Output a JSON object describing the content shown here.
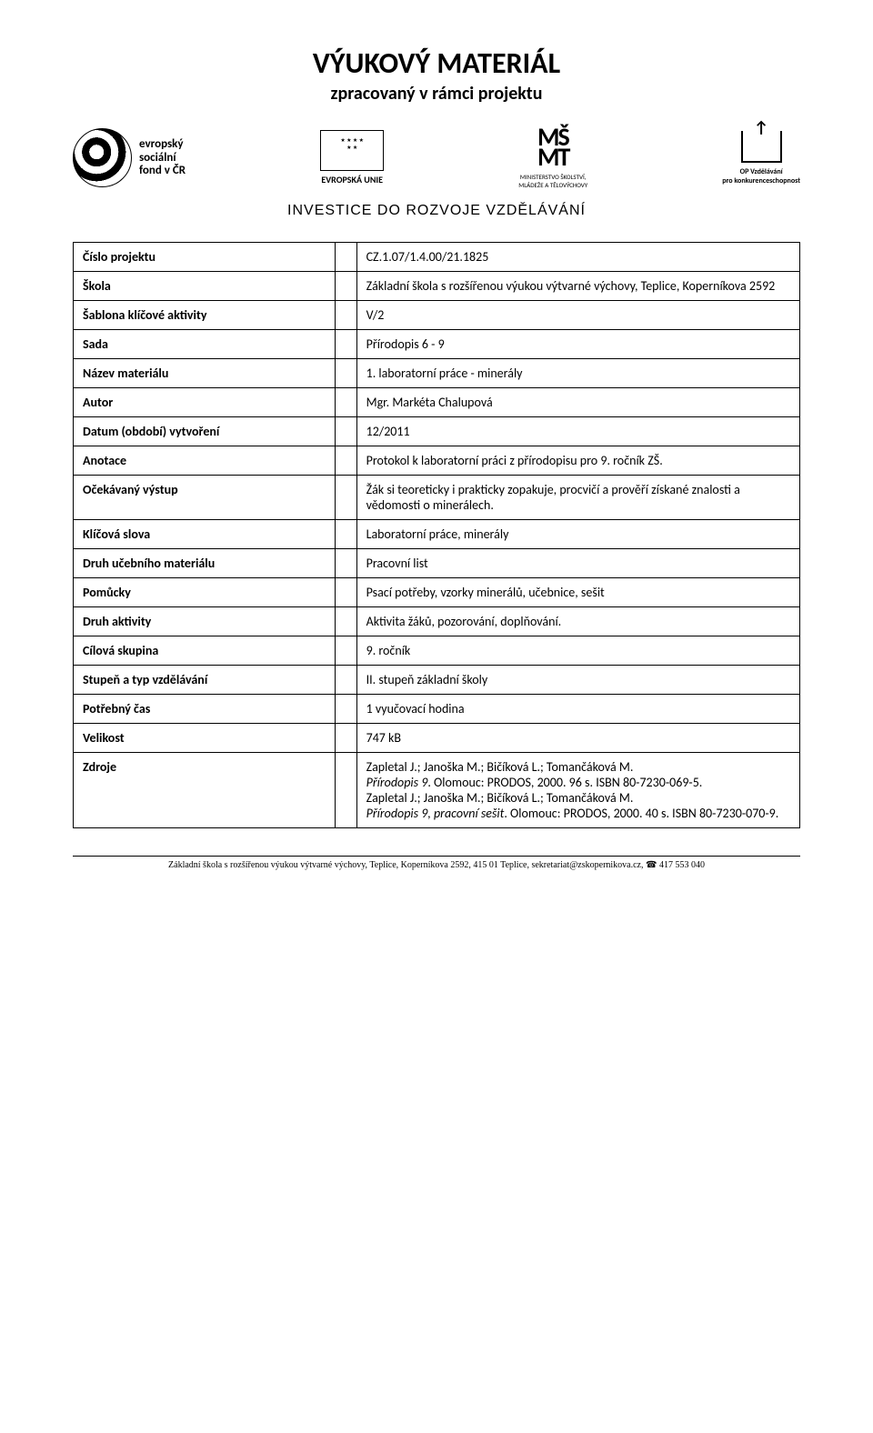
{
  "header": {
    "title": "VÝUKOVÝ MATERIÁL",
    "subtitle": "zpracovaný v rámci projektu"
  },
  "logos": {
    "esf_line1": "evropský",
    "esf_line2": "sociální",
    "esf_line3": "fond v ČR",
    "eu_label": "EVROPSKÁ UNIE",
    "msmt_top": "MŠ",
    "msmt_bottom": "MT",
    "msmt_label1": "MINISTERSTVO ŠKOLSTVÍ,",
    "msmt_label2": "MLÁDEŽE A TĚLOVÝCHOVY",
    "op_label1": "OP Vzdělávání",
    "op_label2": "pro konkurenceschopnost",
    "investice": "INVESTICE DO ROZVOJE VZDĚLÁVÁNÍ"
  },
  "rows": {
    "projekt_cislo": {
      "label": "Číslo projektu",
      "value": "CZ.1.07/1.4.00/21.1825"
    },
    "skola": {
      "label": "Škola",
      "value": "Základní škola s rozšířenou výukou výtvarné výchovy, Teplice, Koperníkova 2592"
    },
    "sablona": {
      "label": "Šablona klíčové aktivity",
      "value": "V/2"
    },
    "sada": {
      "label": "Sada",
      "value": "Přírodopis 6 - 9"
    },
    "nazev": {
      "label": "Název materiálu",
      "value": "1. laboratorní práce - minerály"
    },
    "autor": {
      "label": "Autor",
      "value": "Mgr. Markéta Chalupová"
    },
    "datum": {
      "label": "Datum (období) vytvoření",
      "value": "12/2011"
    },
    "anotace": {
      "label": "Anotace",
      "value": "Protokol k laboratorní práci z přírodopisu pro 9. ročník ZŠ."
    },
    "vystup": {
      "label": "Očekávaný výstup",
      "value": "Žák si teoreticky i prakticky zopakuje, procvičí a prověří získané znalosti a vědomosti o minerálech."
    },
    "klicova": {
      "label": "Klíčová slova",
      "value": "Laboratorní práce, minerály"
    },
    "druh_mat": {
      "label": "Druh učebního materiálu",
      "value": "Pracovní list"
    },
    "pomucky": {
      "label": "Pomůcky",
      "value": "Psací potřeby, vzorky minerálů, učebnice, sešit"
    },
    "aktivity": {
      "label": "Druh aktivity",
      "value": "Aktivita žáků, pozorování, doplňování."
    },
    "cilova": {
      "label": "Cílová skupina",
      "value": "9. ročník"
    },
    "stupen": {
      "label": "Stupeň a typ vzdělávání",
      "value": "II. stupeň základní školy"
    },
    "cas": {
      "label": "Potřebný čas",
      "value": "1 vyučovací hodina"
    },
    "velikost": {
      "label": "Velikost",
      "value": "747 kB"
    },
    "zdroje": {
      "label": "Zdroje",
      "line1": "Zapletal J.; Janoška M.; Bičíková L.; Tomančáková M.",
      "line2_italic": "Přírodopis 9",
      "line2_rest": ". Olomouc: PRODOS, 2000. 96 s. ISBN 80-7230-069-5.",
      "line3": "Zapletal J.; Janoška M.; Bičíková L.; Tomančáková M.",
      "line4_italic": "Přírodopis 9, pracovní sešit",
      "line4_rest": ". Olomouc: PRODOS, 2000. 40 s. ISBN 80-7230-070-9."
    }
  },
  "footer": {
    "text": "Základní škola s rozšířenou výukou výtvarné výchovy, Teplice, Koperníkova 2592, 415 01 Teplice, sekretariat@zskopernikova.cz, ",
    "phone": "417 553 040"
  }
}
